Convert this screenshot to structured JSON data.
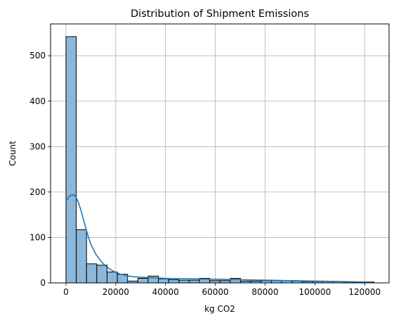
{
  "chart_data": {
    "type": "bar",
    "subtype": "histogram",
    "title": "Distribution of Shipment Emissions",
    "xlabel": "kg CO2",
    "ylabel": "Count",
    "xlim": [
      -6200,
      129800
    ],
    "ylim": [
      0,
      570
    ],
    "grid": true,
    "x_ticks": [
      0,
      20000,
      40000,
      60000,
      80000,
      100000,
      120000
    ],
    "x_tick_labels": [
      "0",
      "20000",
      "40000",
      "60000",
      "80000",
      "100000",
      "120000"
    ],
    "y_ticks": [
      0,
      100,
      200,
      300,
      400,
      500
    ],
    "y_tick_labels": [
      "0",
      "100",
      "200",
      "300",
      "400",
      "500"
    ],
    "bin_start": 0,
    "bin_width": 4125,
    "counts": [
      542,
      117,
      42,
      39,
      24,
      19,
      4,
      10,
      15,
      9,
      7,
      6,
      6,
      10,
      5,
      5,
      10,
      4,
      4,
      5,
      5,
      5,
      4,
      3,
      3,
      3,
      3,
      2,
      2,
      2
    ],
    "kde": {
      "x": [
        0,
        1000,
        2000,
        3000,
        4000,
        5000,
        6000,
        7000,
        8000,
        9000,
        10000,
        12000,
        14000,
        16000,
        18000,
        20000,
        22000,
        25000,
        28000,
        32000,
        36000,
        40000,
        50000,
        60000,
        70000,
        80000,
        90000,
        100000,
        110000,
        120000,
        123000
      ],
      "y": [
        180,
        188,
        193,
        194,
        189,
        177,
        160,
        140,
        120,
        101,
        85,
        63,
        48,
        37,
        29,
        23,
        19,
        15,
        13,
        12,
        11,
        10,
        9,
        8,
        7,
        6,
        5,
        4,
        3,
        2,
        2
      ]
    },
    "colors": {
      "bar_fill": "#8ab7da",
      "bar_edge": "#000000",
      "kde_line": "#1f77b4",
      "grid": "#b0b0b0"
    }
  }
}
